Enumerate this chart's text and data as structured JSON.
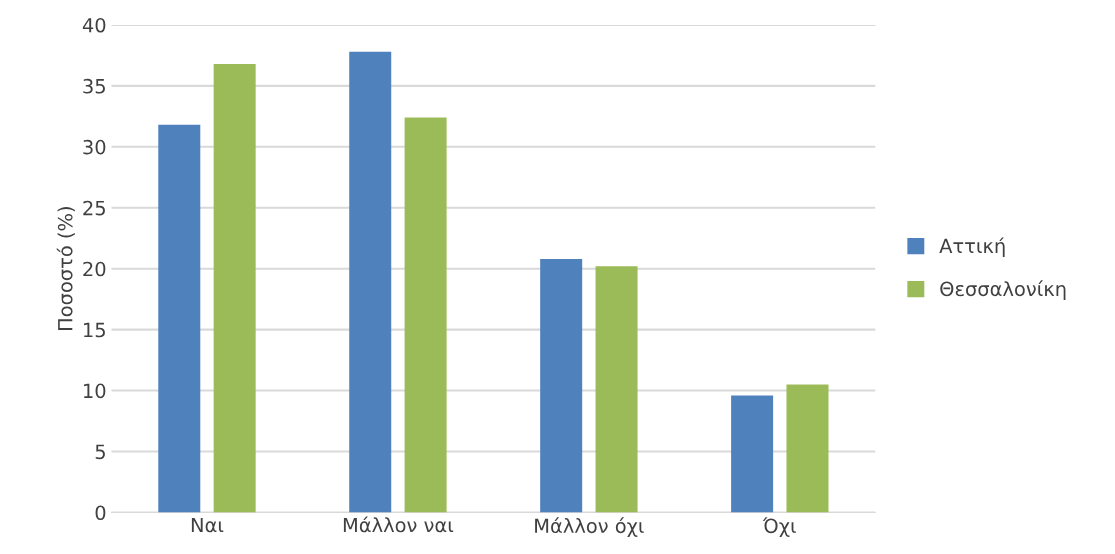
{
  "chart_data": {
    "type": "bar",
    "ylabel": "Ποσοστό (%)",
    "categories": [
      "Ναι",
      "Μάλλον ναι",
      "Μάλλον όχι",
      "Όχι"
    ],
    "series": [
      {
        "name": "Αττική",
        "color": "#4f81bd",
        "values": [
          31.8,
          37.8,
          20.8,
          9.6
        ]
      },
      {
        "name": "Θεσσαλονίκη",
        "color": "#9bbb59",
        "values": [
          36.8,
          32.4,
          20.2,
          10.5
        ]
      }
    ],
    "ylim": [
      0,
      40
    ],
    "yticks": [
      0,
      5,
      10,
      15,
      20,
      25,
      30,
      35,
      40
    ],
    "grid": "y",
    "legend": "right"
  }
}
